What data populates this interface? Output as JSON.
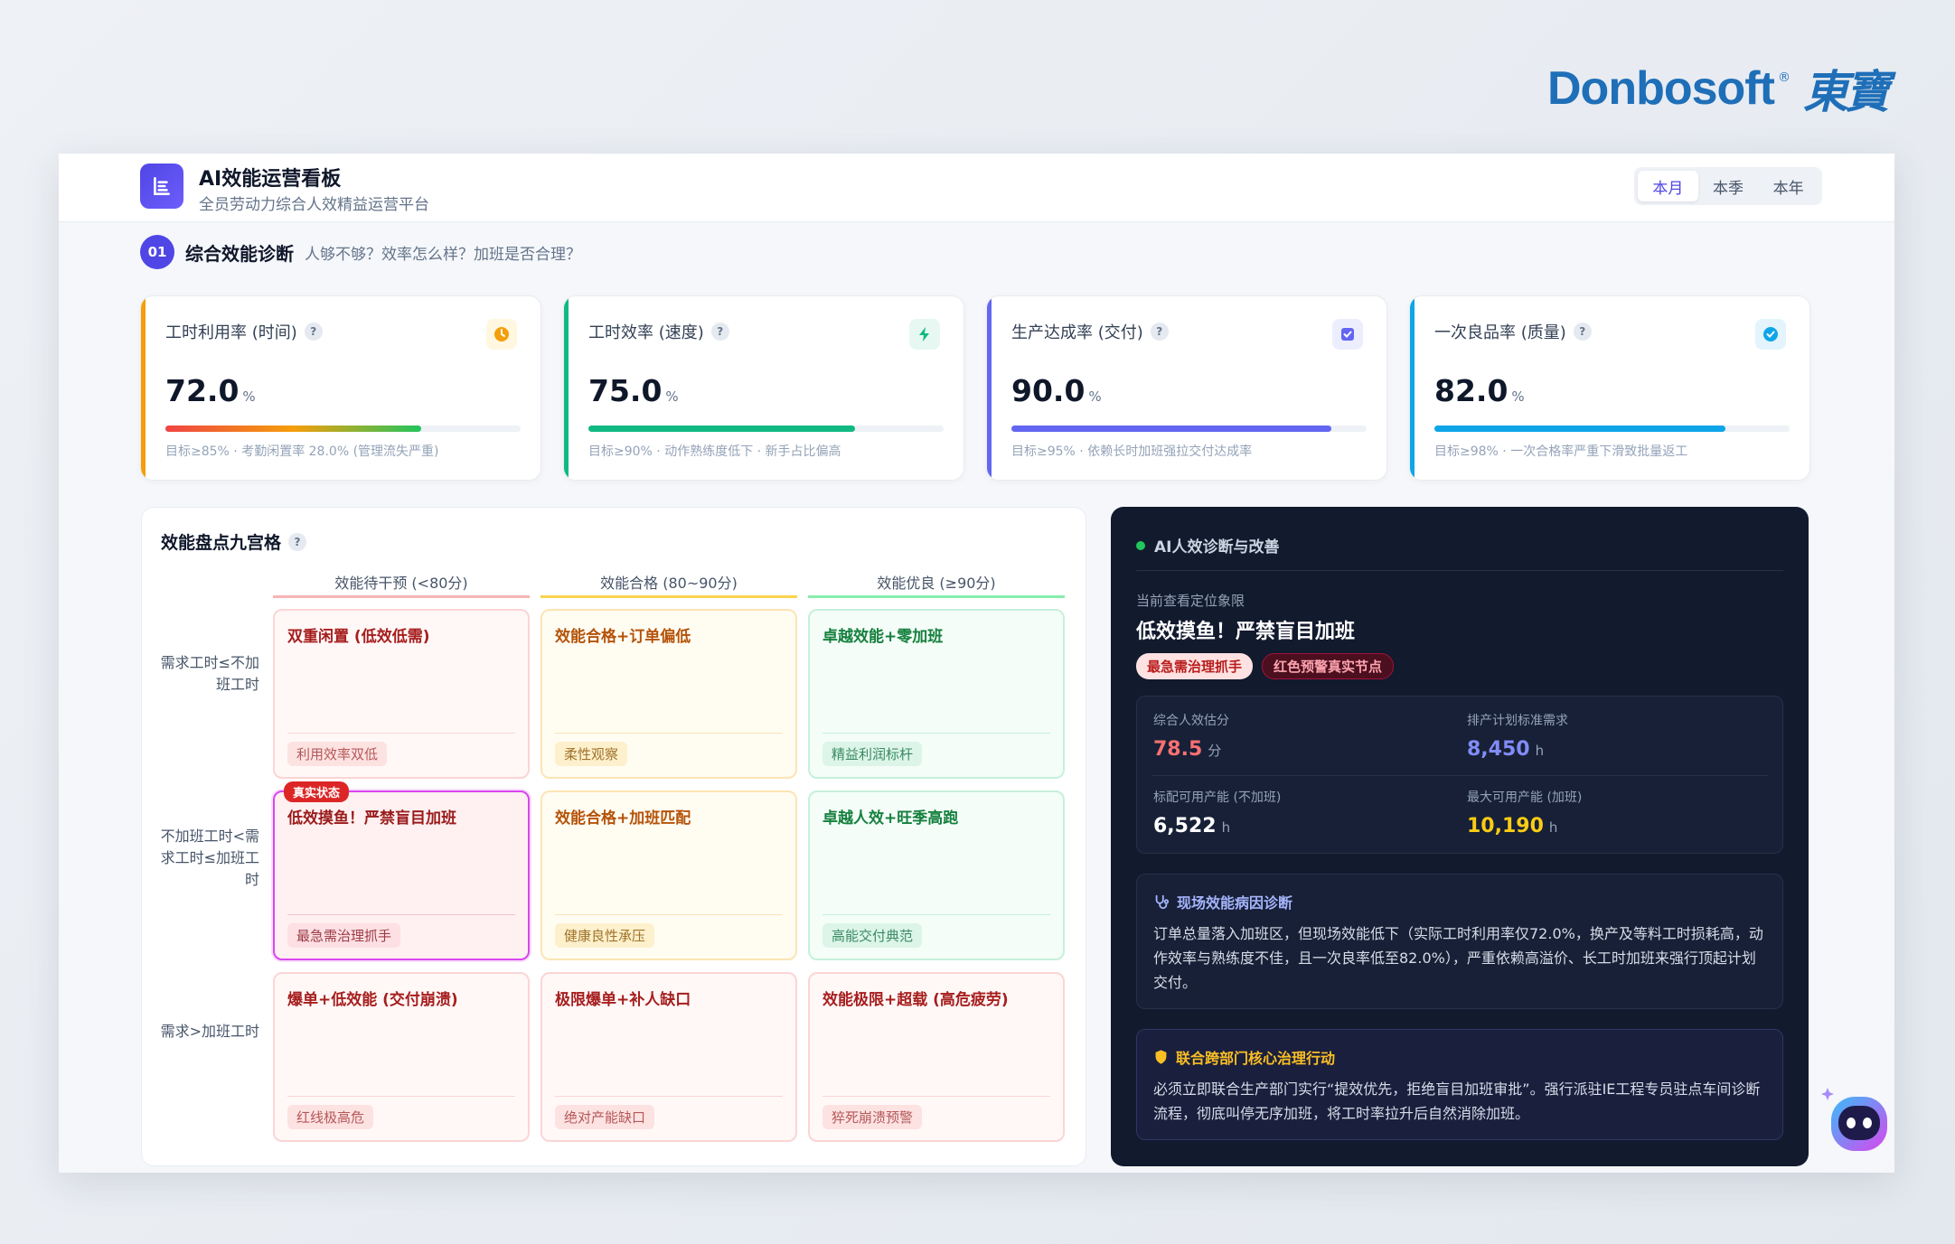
{
  "brand": {
    "name": "Donbosoft",
    "reg": "®",
    "cn": "東寶"
  },
  "header": {
    "title": "AI效能运营看板",
    "subtitle": "全员劳动力综合人效精益运营平台",
    "periods": [
      "本月",
      "本季",
      "本年"
    ],
    "active_period": "本月"
  },
  "section": {
    "num": "01",
    "title": "综合效能诊断",
    "desc": "人够不够？效率怎么样？加班是否合理？"
  },
  "kpis": [
    {
      "label": "工时利用率 (时间)",
      "value": "72.0",
      "unit": "%",
      "progress": 0.72,
      "note": "目标≥85% · 考勤闲置率 28.0% (管理流失严重)",
      "accent": "#f59e0b",
      "icon": "clock-icon"
    },
    {
      "label": "工时效率 (速度)",
      "value": "75.0",
      "unit": "%",
      "progress": 0.75,
      "note": "目标≥90% · 动作熟练度低下 · 新手占比偏高",
      "accent": "#10b981",
      "icon": "lightning-icon"
    },
    {
      "label": "生产达成率 (交付)",
      "value": "90.0",
      "unit": "%",
      "progress": 0.9,
      "note": "目标≥95% · 依赖长时加班强拉交付达成率",
      "accent": "#6366f1",
      "icon": "checkbox-icon"
    },
    {
      "label": "一次良品率 (质量)",
      "value": "82.0",
      "unit": "%",
      "progress": 0.82,
      "note": "目标≥98% · 一次合格率严重下滑致批量返工",
      "accent": "#0ea5e9",
      "icon": "check-circle-icon"
    }
  ],
  "grid": {
    "title": "效能盘点九宫格",
    "help": "?",
    "columns": [
      "效能待干预 (<80分)",
      "效能合格 (80~90分)",
      "效能优良 (≥90分)"
    ],
    "rows": [
      "需求工时≤不加班工时",
      "不加班工时<需求工时≤加班工时",
      "需求>加班工时"
    ],
    "current_badge": "真实状态",
    "cells": [
      [
        {
          "title": "双重闲置 (低效低需)",
          "tag": "利用效率双低"
        },
        {
          "title": "效能合格+订单偏低",
          "tag": "柔性观察"
        },
        {
          "title": "卓越效能+零加班",
          "tag": "精益利润标杆"
        }
      ],
      [
        {
          "title": "低效摸鱼！严禁盲目加班",
          "tag": "最急需治理抓手",
          "current": true
        },
        {
          "title": "效能合格+加班匹配",
          "tag": "健康良性承压"
        },
        {
          "title": "卓越人效+旺季高跑",
          "tag": "高能交付典范"
        }
      ],
      [
        {
          "title": "爆单+低效能 (交付崩溃)",
          "tag": "红线极高危"
        },
        {
          "title": "极限爆单+补人缺口",
          "tag": "绝对产能缺口"
        },
        {
          "title": "效能极限+超载 (高危疲劳)",
          "tag": "猝死崩溃预警"
        }
      ]
    ]
  },
  "ai": {
    "title": "AI人效诊断与改善",
    "caption": "当前查看定位象限",
    "quadrant": "低效摸鱼！严禁盲目加班",
    "badges": [
      "最急需治理抓手",
      "红色预警真实节点"
    ],
    "stats": [
      {
        "label": "综合人效估分",
        "value": "78.5",
        "unit": "分",
        "color": "#f87171"
      },
      {
        "label": "排产计划标准需求",
        "value": "8,450",
        "unit": "h",
        "color": "#818cf8"
      },
      {
        "label": "标配可用产能 (不加班)",
        "value": "6,522",
        "unit": "h",
        "color": "#ffffff"
      },
      {
        "label": "最大可用产能 (加班)",
        "value": "10,190",
        "unit": "h",
        "color": "#facc15"
      }
    ],
    "diagnosis": {
      "title": "现场效能病因诊断",
      "text": "订单总量落入加班区，但现场效能低下（实际工时利用率仅72.0%，换产及等料工时损耗高，动作效率与熟练度不佳，且一次良率低至82.0%），严重依赖高溢价、长工时加班来强行顶起计划交付。"
    },
    "action": {
      "title": "联合跨部门核心治理行动",
      "text": "必须立即联合生产部门实行“提效优先，拒绝盲目加班审批”。强行派驻IE工程专员驻点车间诊断流程，彻底叫停无序加班，将工时率拉升后自然消除加班。"
    }
  }
}
